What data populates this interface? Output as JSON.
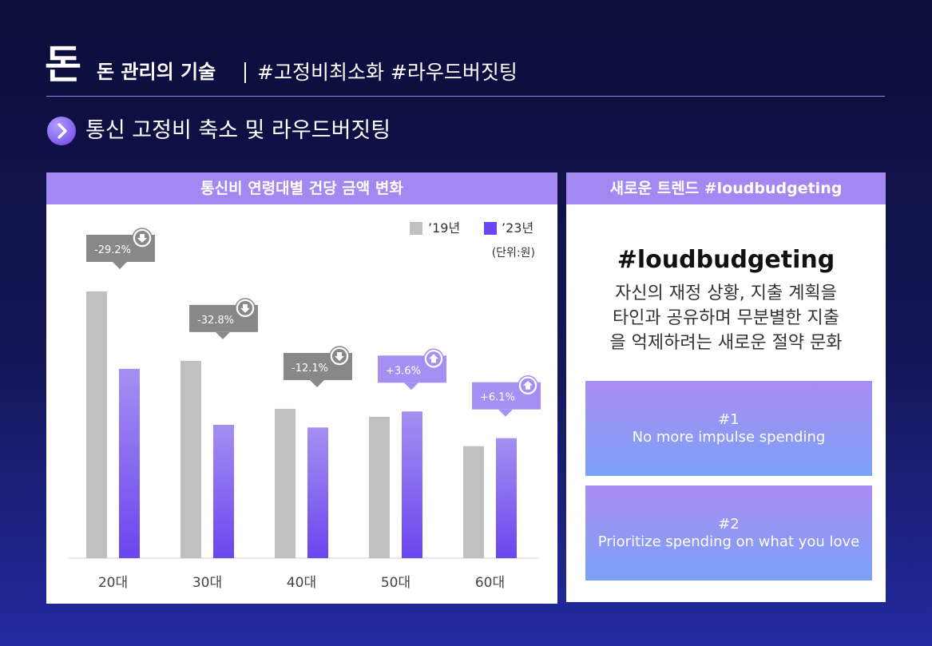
{
  "header": {
    "logo": "돈",
    "brand": "돈 관리의 기술",
    "tags": "#고정비최소화 #라우드버짓팅",
    "subtitle": "통신 고정비 축소 및 라우드버짓팅"
  },
  "chart_panel": {
    "title": "통신비 연령대별 건당 금액 변화"
  },
  "chart_data": {
    "type": "bar",
    "title": "통신비 연령대별 건당 금액 변화",
    "categories": [
      "20대",
      "30대",
      "40대",
      "50대",
      "60대"
    ],
    "series": [
      {
        "name": "’19년",
        "values": [
          100,
          74,
          56,
          53,
          42
        ]
      },
      {
        "name": "’23년",
        "values": [
          71,
          50,
          49,
          55,
          45
        ]
      }
    ],
    "changes": [
      "-29.2%",
      "-32.8%",
      "-12.1%",
      "+3.6%",
      "+6.1%"
    ],
    "change_direction": [
      "down",
      "down",
      "down",
      "up",
      "up"
    ],
    "unit": "(단위:원)",
    "ylim": [
      0,
      100
    ],
    "legend_position": "top-right",
    "colors": {
      "y2019": "#c0c0c0",
      "y2023_top": "#a58ff2",
      "y2023_bottom": "#6b45ef",
      "badge_down": "#888888",
      "badge_up": "#a58ff2"
    }
  },
  "trend_panel": {
    "title": "새로운 트렌드 #loudbudgeting",
    "headline": "#loudbudgeting",
    "desc_lines": [
      "자신의 재정 상황, 지출 계획을",
      "타인과 공유하며 무분별한 지출",
      "을 억제하려는 새로운 절약 문화"
    ],
    "cards": [
      {
        "num": "#1",
        "text": "No more impulse spending"
      },
      {
        "num": "#2",
        "text": "Prioritize spending on what you love"
      }
    ]
  }
}
